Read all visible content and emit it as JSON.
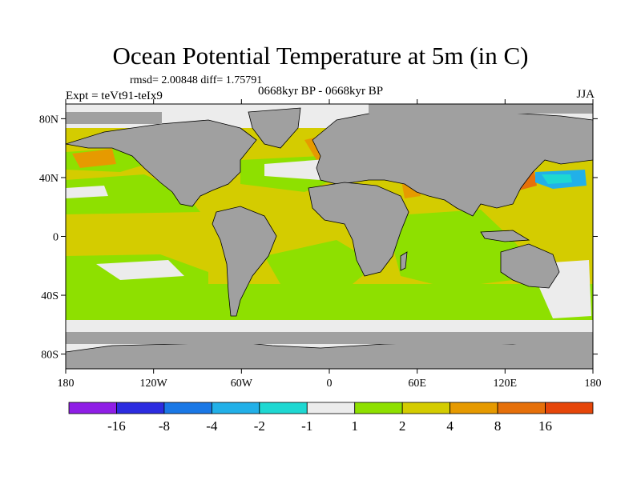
{
  "title": "Ocean Potential Temperature at 5m (in C)",
  "stats": "rmsd= 2.00848 diff= 1.75791",
  "period": "0668kyr BP - 0668kyr BP",
  "experiment": "Expt = teVt91-teIx9",
  "season": "JJA",
  "map": {
    "projection": "cylindrical-equidistant",
    "lon_range": [
      -180,
      180
    ],
    "lat_range": [
      -90,
      90
    ],
    "lat_ticks": [
      {
        "value": 80,
        "label": "80N"
      },
      {
        "value": 40,
        "label": "40N"
      },
      {
        "value": 0,
        "label": "0"
      },
      {
        "value": -40,
        "label": "40S"
      },
      {
        "value": -80,
        "label": "80S"
      }
    ],
    "lon_ticks": [
      {
        "value": -180,
        "label": "180"
      },
      {
        "value": -120,
        "label": "120W"
      },
      {
        "value": -60,
        "label": "60W"
      },
      {
        "value": 0,
        "label": "0"
      },
      {
        "value": 60,
        "label": "60E"
      },
      {
        "value": 120,
        "label": "120E"
      },
      {
        "value": 180,
        "label": "180"
      }
    ],
    "land_color": "#a0a0a0"
  },
  "colorbar": {
    "colors": [
      "#8f1ee6",
      "#2c2ce0",
      "#1a78e6",
      "#22b0e8",
      "#1ed8d2",
      "#ececec",
      "#8ee000",
      "#d4cc00",
      "#e69a00",
      "#e6700a",
      "#e6460a"
    ],
    "labels": [
      "-16",
      "-8",
      "-4",
      "-2",
      "-1",
      "1",
      "2",
      "4",
      "8",
      "16"
    ]
  }
}
